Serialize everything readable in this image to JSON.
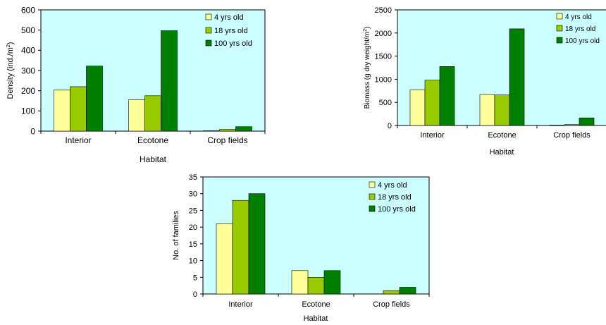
{
  "colors": {
    "plot_bg": "#ccffff",
    "series": [
      "#ffff99",
      "#99cc00",
      "#008000"
    ]
  },
  "chart_data": [
    {
      "type": "bar",
      "categories": [
        "Interior",
        "Ecotone",
        "Crop fields"
      ],
      "series": [
        {
          "name": "4 yrs old",
          "values": [
            203,
            155,
            2
          ]
        },
        {
          "name": "18 yrs old",
          "values": [
            220,
            175,
            8
          ]
        },
        {
          "name": "100 yrs old",
          "values": [
            322,
            497,
            22
          ]
        }
      ],
      "title": "",
      "xlabel": "Habitat",
      "ylabel": "Density (ind./m²)",
      "ylim": [
        0,
        600
      ],
      "yticks": [
        "0",
        "100",
        "200",
        "300",
        "400",
        "500",
        "600"
      ],
      "grid": false,
      "legend_position": "top-right"
    },
    {
      "type": "bar",
      "categories": [
        "Interior",
        "Ecotone",
        "Crop fields"
      ],
      "series": [
        {
          "name": "4 yrs old",
          "values": [
            770,
            670,
            10
          ]
        },
        {
          "name": "18 yrs old",
          "values": [
            980,
            660,
            20
          ]
        },
        {
          "name": "100 yrs old",
          "values": [
            1275,
            2090,
            165
          ]
        }
      ],
      "title": "",
      "xlabel": "Habitat",
      "ylabel": "Biomass (g dry weight/m²)",
      "ylim": [
        0,
        2500
      ],
      "yticks": [
        "0",
        "500",
        "1000",
        "1500",
        "2000",
        "2500"
      ],
      "grid": false,
      "legend_position": "top-right"
    },
    {
      "type": "bar",
      "categories": [
        "Interior",
        "Ecotone",
        "Crop fields"
      ],
      "series": [
        {
          "name": "4 yrs old",
          "values": [
            21,
            7,
            0
          ]
        },
        {
          "name": "18 yrs old",
          "values": [
            28,
            5,
            1
          ]
        },
        {
          "name": "100 yrs old",
          "values": [
            30,
            7,
            2
          ]
        }
      ],
      "title": "",
      "xlabel": "Habitat",
      "ylabel": "No. of families",
      "ylim": [
        0,
        35
      ],
      "yticks": [
        "0",
        "5",
        "10",
        "15",
        "20",
        "25",
        "30",
        "35"
      ],
      "grid": false,
      "legend_position": "top-right"
    }
  ]
}
